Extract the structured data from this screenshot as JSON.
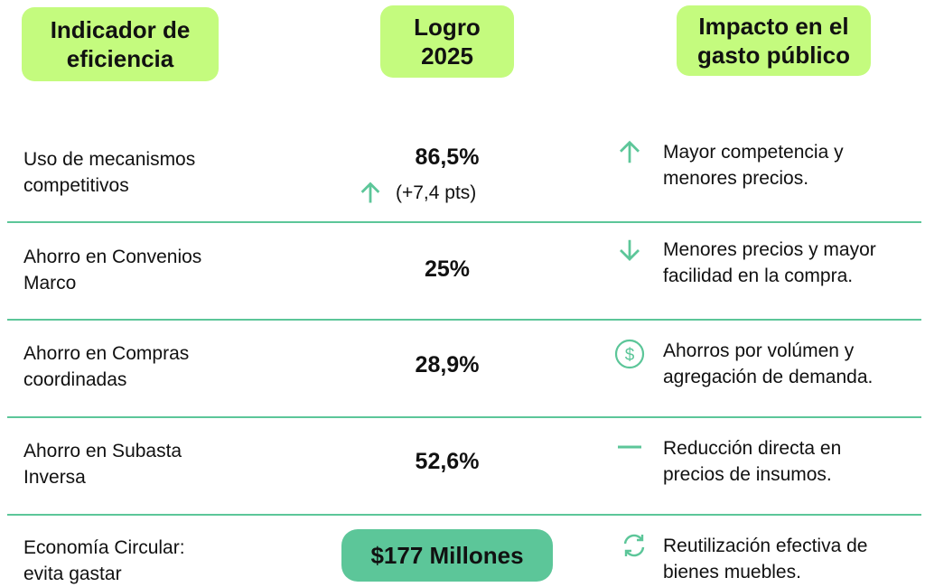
{
  "header": {
    "col1": "Indicador de eficiencia",
    "col2": "Logro 2025",
    "col3": "Impacto en el gasto público"
  },
  "colors": {
    "header_bg": "#c4fb7e",
    "accent": "#5cc699"
  },
  "rows": [
    {
      "indicator": "Uso de mecanismos competitivos",
      "value": "86,5%",
      "change": "(+7,4 pts)",
      "change_icon": "arrow-up-icon",
      "impact_icon": "arrow-up-icon",
      "impact": "Mayor competencia y menores precios."
    },
    {
      "indicator": "Ahorro en Convenios Marco",
      "value": "25%",
      "impact_icon": "arrow-down-icon",
      "impact": "Menores precios y mayor facilidad en la compra."
    },
    {
      "indicator": "Ahorro en Compras coordinadas",
      "value": "28,9%",
      "impact_icon": "dollar-circle-icon",
      "impact": "Ahorros por volúmen y agregación de demanda."
    },
    {
      "indicator": "Ahorro en Subasta Inversa",
      "value": "52,6%",
      "impact_icon": "minus-icon",
      "impact": "Reducción directa en precios de insumos."
    },
    {
      "indicator": "Economía Circular: evita gastar",
      "value": "$177 Millones",
      "impact_icon": "refresh-icon",
      "impact": "Reutilización efectiva de bienes muebles."
    }
  ]
}
